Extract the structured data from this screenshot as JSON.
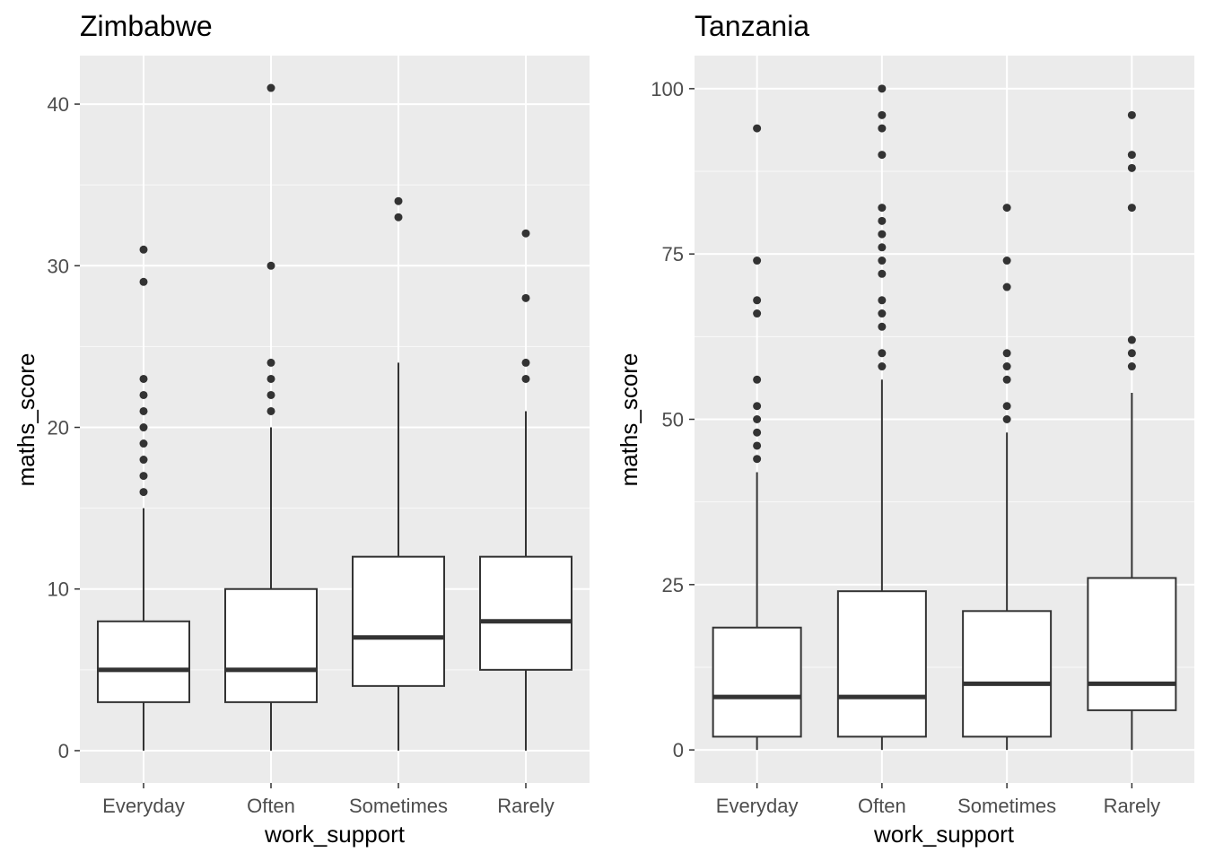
{
  "chart_data": [
    {
      "type": "boxplot",
      "title": "Zimbabwe",
      "xlabel": "work_support",
      "ylabel": "maths_score",
      "categories": [
        "Everyday",
        "Often",
        "Sometimes",
        "Rarely"
      ],
      "ylim": [
        -2,
        43
      ],
      "yticks": [
        0,
        10,
        20,
        30,
        40
      ],
      "grid": true,
      "boxes": [
        {
          "category": "Everyday",
          "min": 0,
          "q1": 3,
          "median": 5,
          "q3": 8,
          "max": 15,
          "outliers": [
            16,
            17,
            18,
            19,
            20,
            21,
            22,
            23,
            29,
            31
          ]
        },
        {
          "category": "Often",
          "min": 0,
          "q1": 3,
          "median": 5,
          "q3": 10,
          "max": 20,
          "outliers": [
            21,
            22,
            23,
            24,
            30,
            41
          ]
        },
        {
          "category": "Sometimes",
          "min": 0,
          "q1": 4,
          "median": 7,
          "q3": 12,
          "max": 24,
          "outliers": [
            33,
            34
          ]
        },
        {
          "category": "Rarely",
          "min": 0,
          "q1": 5,
          "median": 8,
          "q3": 12,
          "max": 21,
          "outliers": [
            23,
            24,
            28,
            32
          ]
        }
      ]
    },
    {
      "type": "boxplot",
      "title": "Tanzania",
      "xlabel": "work_support",
      "ylabel": "maths_score",
      "categories": [
        "Everyday",
        "Often",
        "Sometimes",
        "Rarely"
      ],
      "ylim": [
        -5,
        105
      ],
      "yticks": [
        0,
        25,
        50,
        75,
        100
      ],
      "grid": true,
      "boxes": [
        {
          "category": "Everyday",
          "min": 0,
          "q1": 2,
          "median": 8,
          "q3": 18.5,
          "max": 42,
          "outliers": [
            44,
            46,
            48,
            50,
            52,
            56,
            66,
            68,
            74,
            94
          ]
        },
        {
          "category": "Often",
          "min": 0,
          "q1": 2,
          "median": 8,
          "q3": 24,
          "max": 56,
          "outliers": [
            58,
            60,
            64,
            66,
            68,
            72,
            74,
            76,
            78,
            80,
            82,
            90,
            94,
            96,
            100
          ]
        },
        {
          "category": "Sometimes",
          "min": 0,
          "q1": 2,
          "median": 10,
          "q3": 21,
          "max": 48,
          "outliers": [
            50,
            52,
            56,
            58,
            60,
            70,
            74,
            82
          ]
        },
        {
          "category": "Rarely",
          "min": 0,
          "q1": 6,
          "median": 10,
          "q3": 26,
          "max": 54,
          "outliers": [
            58,
            60,
            62,
            82,
            88,
            90,
            96
          ]
        }
      ]
    }
  ],
  "colors": {
    "panel_background": "#ebebeb",
    "grid_major": "#ffffff",
    "box_line": "#333333",
    "box_fill": "#ffffff",
    "tick_text": "#4d4d4d"
  }
}
